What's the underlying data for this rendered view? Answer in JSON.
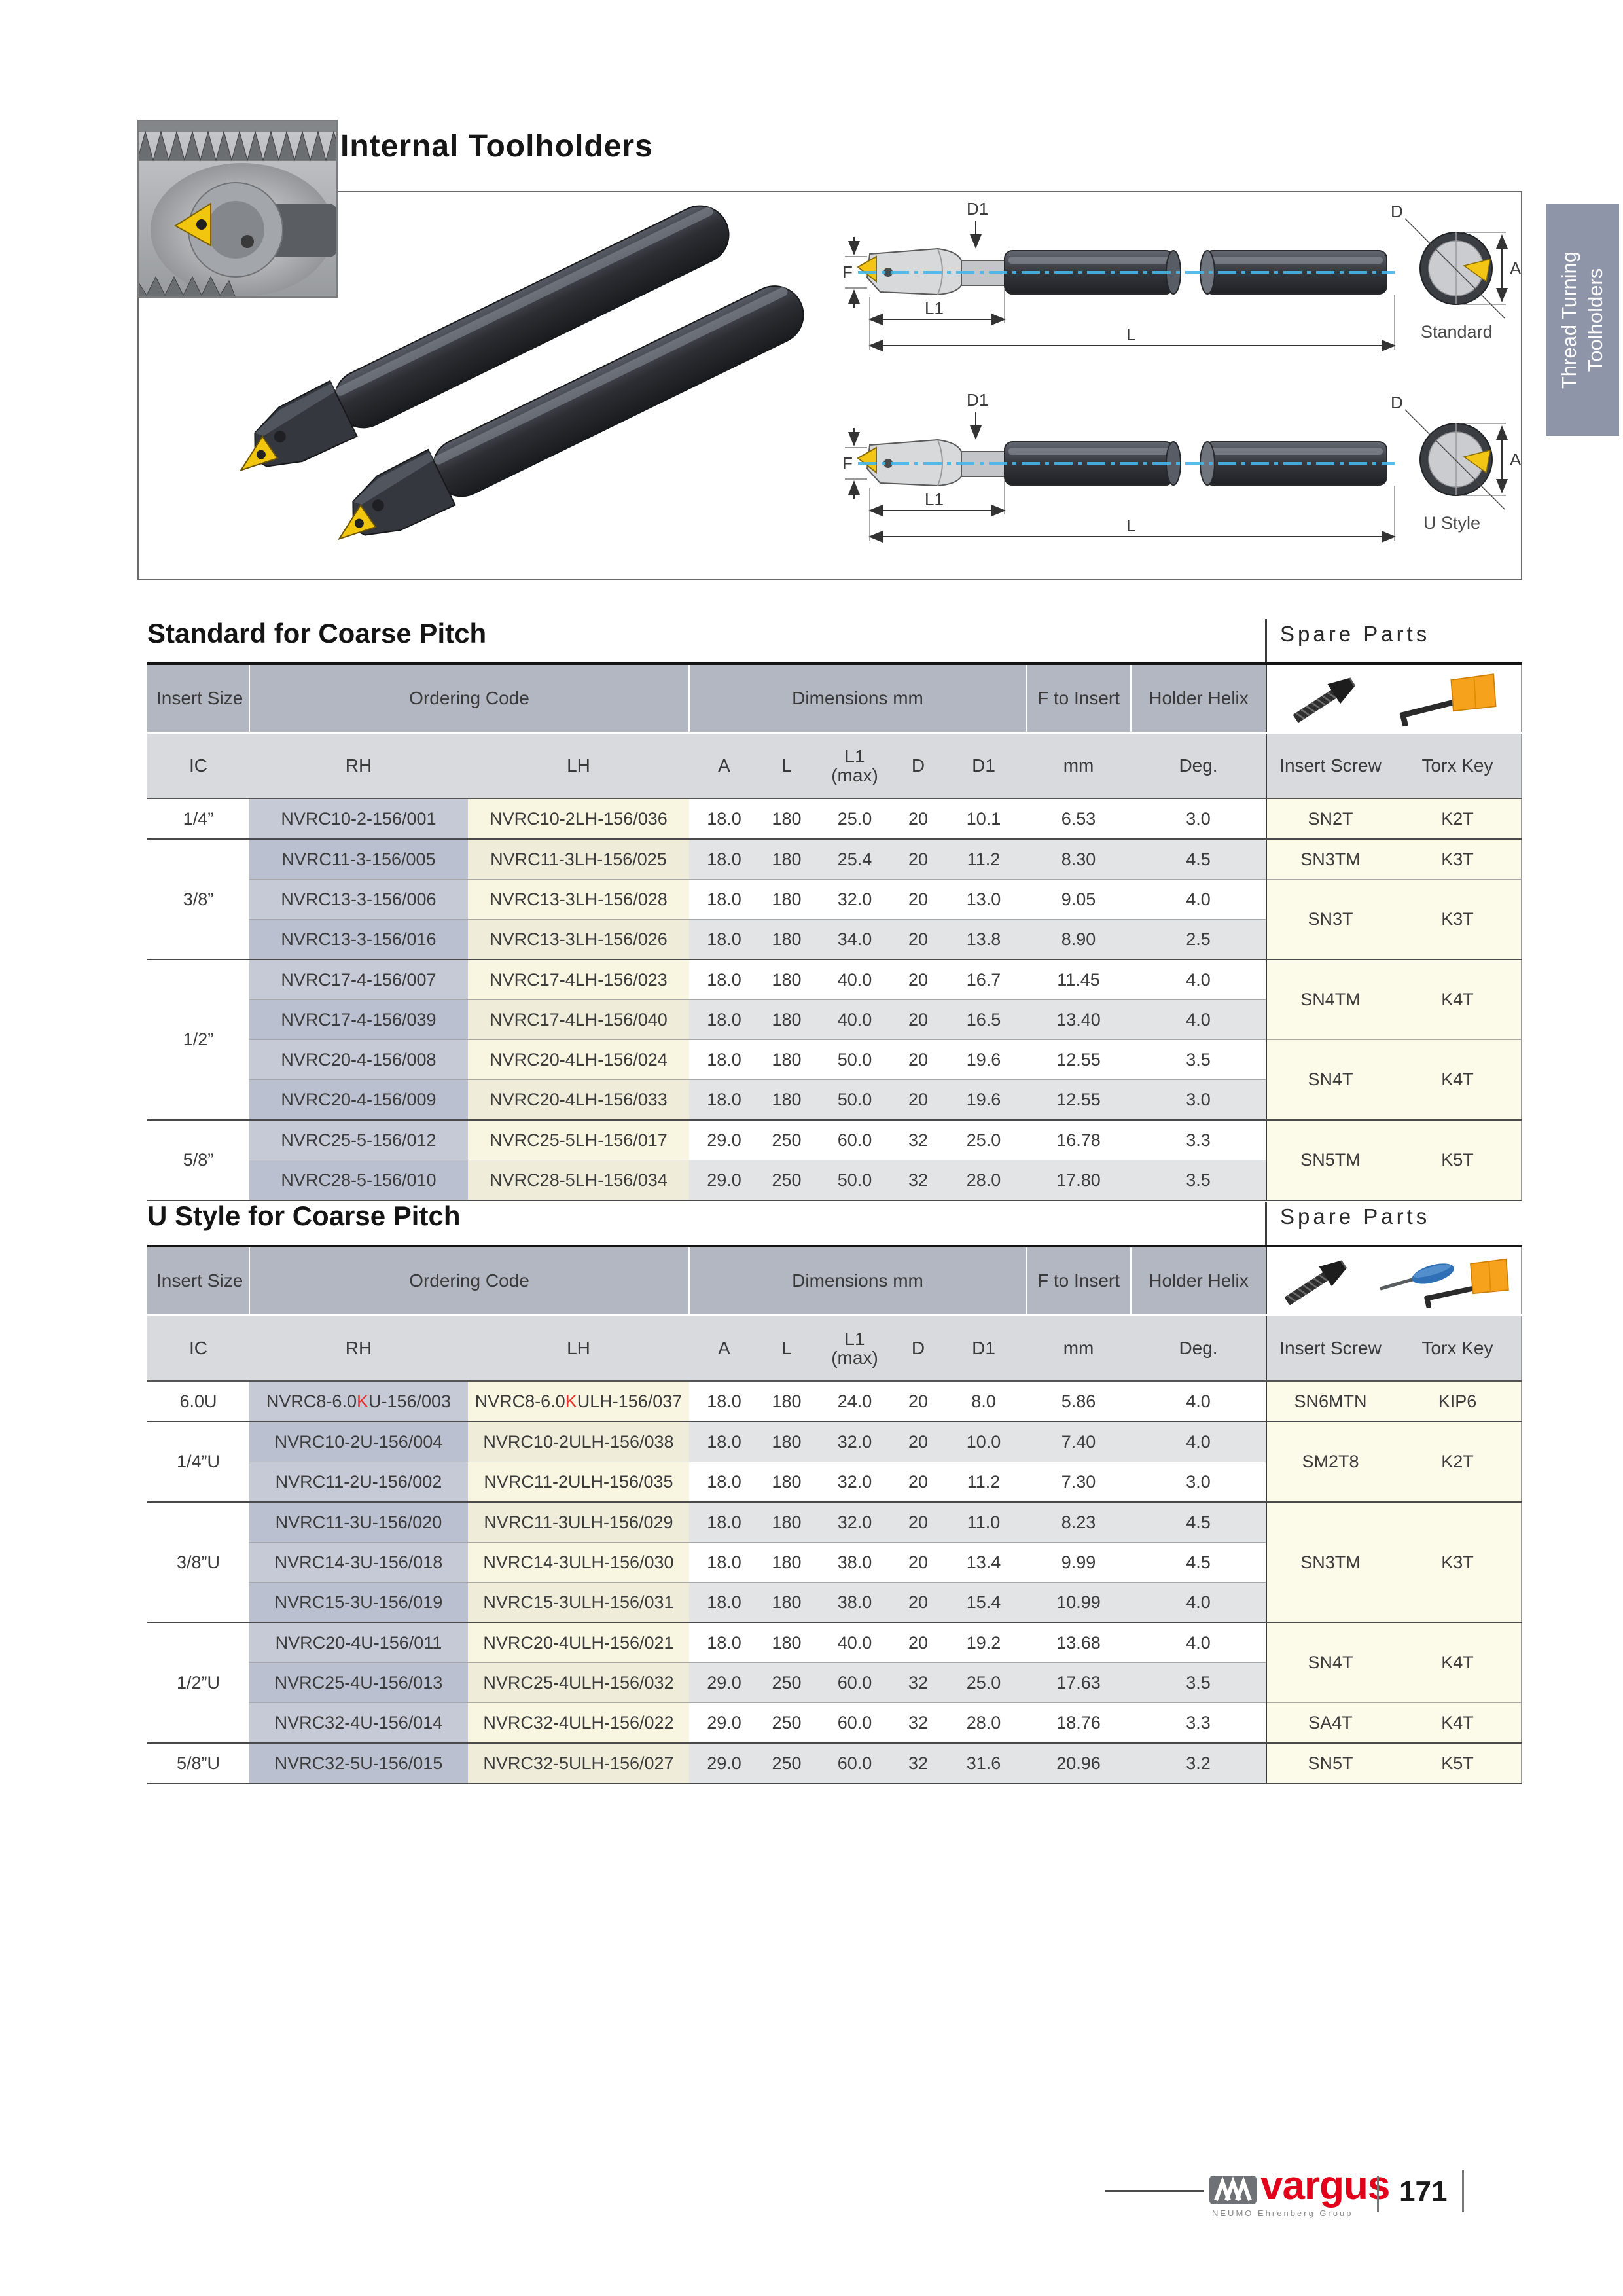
{
  "page": {
    "title": "Internal Toolholders"
  },
  "side_tab": {
    "line1": "Thread Turning",
    "line2": "Toolholders"
  },
  "illustration": {
    "standard_label": "Standard",
    "ustyle_label": "U Style",
    "dims": {
      "d1": "D1",
      "f": "F",
      "l1": "L1",
      "l": "L",
      "d": "D",
      "a": "A"
    }
  },
  "headers": {
    "insert_size": "Insert Size",
    "ordering_code": "Ordering Code",
    "dimensions": "Dimensions mm",
    "f_to_insert": "F to Insert",
    "holder_helix": "Holder Helix",
    "ic": "IC",
    "rh": "RH",
    "lh": "LH",
    "a": "A",
    "l": "L",
    "l1": "L1",
    "l1_max": "(max)",
    "d": "D",
    "d1": "D1",
    "mm": "mm",
    "deg": "Deg.",
    "insert_screw": "Insert Screw",
    "torx_key": "Torx Key"
  },
  "icons": {
    "screw": "insert-screw-icon",
    "torx_flag": "torx-key-icon",
    "screwdriver": "screwdriver-icon"
  },
  "tables": {
    "t1": {
      "title": "Standard for Coarse Pitch",
      "spare_title": "Spare Parts",
      "rows": [
        {
          "ic": "1/4”",
          "ic_span": 1,
          "rh": "NVRC10-2-156/001",
          "lh": "NVRC10-2LH-156/036",
          "a": "18.0",
          "l": "180",
          "l1": "25.0",
          "d": "20",
          "d1": "10.1",
          "mm": "6.53",
          "deg": "3.0",
          "screw": "SN2T",
          "screw_span": 1,
          "torx": "K2T",
          "torx_span": 1,
          "ge": true
        },
        {
          "ic": "3/8”",
          "ic_span": 3,
          "rh": "NVRC11-3-156/005",
          "lh": "NVRC11-3LH-156/025",
          "a": "18.0",
          "l": "180",
          "l1": "25.4",
          "d": "20",
          "d1": "11.2",
          "mm": "8.30",
          "deg": "4.5",
          "screw": "SN3TM",
          "screw_span": 1,
          "torx": "K3T",
          "torx_span": 1,
          "ge": false
        },
        {
          "rh": "NVRC13-3-156/006",
          "lh": "NVRC13-3LH-156/028",
          "a": "18.0",
          "l": "180",
          "l1": "32.0",
          "d": "20",
          "d1": "13.0",
          "mm": "9.05",
          "deg": "4.0",
          "screw": "SN3T",
          "screw_span": 2,
          "torx": "K3T",
          "torx_span": 2,
          "ge": false
        },
        {
          "rh": "NVRC13-3-156/016",
          "lh": "NVRC13-3LH-156/026",
          "a": "18.0",
          "l": "180",
          "l1": "34.0",
          "d": "20",
          "d1": "13.8",
          "mm": "8.90",
          "deg": "2.5",
          "ge": true
        },
        {
          "ic": "1/2”",
          "ic_span": 4,
          "rh": "NVRC17-4-156/007",
          "lh": "NVRC17-4LH-156/023",
          "a": "18.0",
          "l": "180",
          "l1": "40.0",
          "d": "20",
          "d1": "16.7",
          "mm": "11.45",
          "deg": "4.0",
          "screw": "SN4TM",
          "screw_span": 2,
          "torx": "K4T",
          "torx_span": 2,
          "ge": false
        },
        {
          "rh": "NVRC17-4-156/039",
          "lh": "NVRC17-4LH-156/040",
          "a": "18.0",
          "l": "180",
          "l1": "40.0",
          "d": "20",
          "d1": "16.5",
          "mm": "13.40",
          "deg": "4.0",
          "ge": false
        },
        {
          "rh": "NVRC20-4-156/008",
          "lh": "NVRC20-4LH-156/024",
          "a": "18.0",
          "l": "180",
          "l1": "50.0",
          "d": "20",
          "d1": "19.6",
          "mm": "12.55",
          "deg": "3.5",
          "screw": "SN4T",
          "screw_span": 2,
          "torx": "K4T",
          "torx_span": 2,
          "ge": false
        },
        {
          "rh": "NVRC20-4-156/009",
          "lh": "NVRC20-4LH-156/033",
          "a": "18.0",
          "l": "180",
          "l1": "50.0",
          "d": "20",
          "d1": "19.6",
          "mm": "12.55",
          "deg": "3.0",
          "ge": true
        },
        {
          "ic": "5/8”",
          "ic_span": 2,
          "rh": "NVRC25-5-156/012",
          "lh": "NVRC25-5LH-156/017",
          "a": "29.0",
          "l": "250",
          "l1": "60.0",
          "d": "32",
          "d1": "25.0",
          "mm": "16.78",
          "deg": "3.3",
          "screw": "SN5TM",
          "screw_span": 2,
          "torx": "K5T",
          "torx_span": 2,
          "ge": false
        },
        {
          "rh": "NVRC28-5-156/010",
          "lh": "NVRC28-5LH-156/034",
          "a": "29.0",
          "l": "250",
          "l1": "50.0",
          "d": "32",
          "d1": "28.0",
          "mm": "17.80",
          "deg": "3.5",
          "ge": true
        }
      ]
    },
    "t2": {
      "title": "U Style for Coarse Pitch",
      "spare_title": "Spare Parts",
      "rows": [
        {
          "ic": "6.0U",
          "ic_span": 1,
          "rh_parts": [
            "NVRC8-6.0",
            "K",
            "U-156/003"
          ],
          "lh_parts": [
            "NVRC8-6.0",
            "K",
            "ULH-156/037"
          ],
          "a": "18.0",
          "l": "180",
          "l1": "24.0",
          "d": "20",
          "d1": "8.0",
          "mm": "5.86",
          "deg": "4.0",
          "screw": "SN6MTN",
          "screw_span": 1,
          "torx": "KIP6",
          "torx_span": 1,
          "ge": true
        },
        {
          "ic": "1/4”U",
          "ic_span": 2,
          "rh": "NVRC10-2U-156/004",
          "lh": "NVRC10-2ULH-156/038",
          "a": "18.0",
          "l": "180",
          "l1": "32.0",
          "d": "20",
          "d1": "10.0",
          "mm": "7.40",
          "deg": "4.0",
          "screw": "SM2T8",
          "screw_span": 2,
          "torx": "K2T",
          "torx_span": 2,
          "ge": false
        },
        {
          "rh": "NVRC11-2U-156/002",
          "lh": "NVRC11-2ULH-156/035",
          "a": "18.0",
          "l": "180",
          "l1": "32.0",
          "d": "20",
          "d1": "11.2",
          "mm": "7.30",
          "deg": "3.0",
          "ge": true
        },
        {
          "ic": "3/8”U",
          "ic_span": 3,
          "rh": "NVRC11-3U-156/020",
          "lh": "NVRC11-3ULH-156/029",
          "a": "18.0",
          "l": "180",
          "l1": "32.0",
          "d": "20",
          "d1": "11.0",
          "mm": "8.23",
          "deg": "4.5",
          "screw": "SN3TM",
          "screw_span": 3,
          "torx": "K3T",
          "torx_span": 3,
          "ge": false
        },
        {
          "rh": "NVRC14-3U-156/018",
          "lh": "NVRC14-3ULH-156/030",
          "a": "18.0",
          "l": "180",
          "l1": "38.0",
          "d": "20",
          "d1": "13.4",
          "mm": "9.99",
          "deg": "4.5",
          "ge": false
        },
        {
          "rh": "NVRC15-3U-156/019",
          "lh": "NVRC15-3ULH-156/031",
          "a": "18.0",
          "l": "180",
          "l1": "38.0",
          "d": "20",
          "d1": "15.4",
          "mm": "10.99",
          "deg": "4.0",
          "ge": true
        },
        {
          "ic": "1/2”U",
          "ic_span": 3,
          "rh": "NVRC20-4U-156/011",
          "lh": "NVRC20-4ULH-156/021",
          "a": "18.0",
          "l": "180",
          "l1": "40.0",
          "d": "20",
          "d1": "19.2",
          "mm": "13.68",
          "deg": "4.0",
          "screw": "SN4T",
          "screw_span": 2,
          "torx": "K4T",
          "torx_span": 2,
          "ge": false
        },
        {
          "rh": "NVRC25-4U-156/013",
          "lh": "NVRC25-4ULH-156/032",
          "a": "29.0",
          "l": "250",
          "l1": "60.0",
          "d": "32",
          "d1": "25.0",
          "mm": "17.63",
          "deg": "3.5",
          "ge": false
        },
        {
          "rh": "NVRC32-4U-156/014",
          "lh": "NVRC32-4ULH-156/022",
          "a": "29.0",
          "l": "250",
          "l1": "60.0",
          "d": "32",
          "d1": "28.0",
          "mm": "18.76",
          "deg": "3.3",
          "screw": "SA4T",
          "screw_span": 1,
          "torx": "K4T",
          "torx_span": 1,
          "ge": true
        },
        {
          "ic": "5/8”U",
          "ic_span": 1,
          "rh": "NVRC32-5U-156/015",
          "lh": "NVRC32-5ULH-156/027",
          "a": "29.0",
          "l": "250",
          "l1": "60.0",
          "d": "32",
          "d1": "31.6",
          "mm": "20.96",
          "deg": "3.2",
          "screw": "SN5T",
          "screw_span": 1,
          "torx": "K5T",
          "torx_span": 1,
          "ge": true
        }
      ]
    }
  },
  "footer": {
    "brand": "vargus",
    "tagline": "NEUMO Ehrenberg Group",
    "page_number": "171"
  }
}
